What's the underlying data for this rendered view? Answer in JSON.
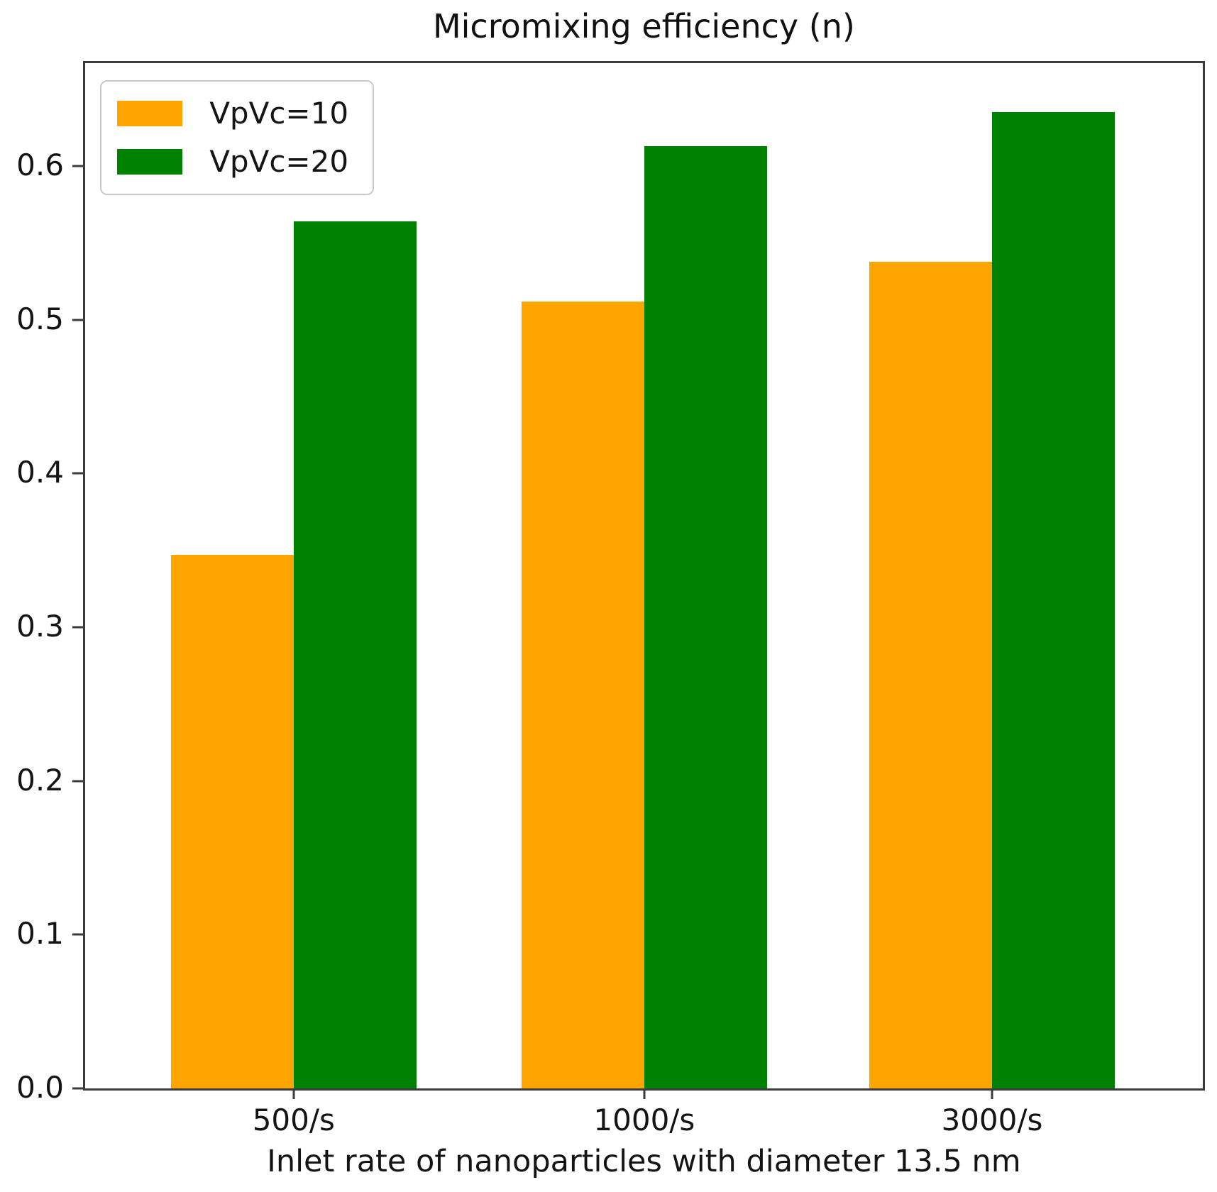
{
  "chart_data": {
    "type": "bar",
    "title": "Micromixing efficiency (n)",
    "xlabel": "Inlet rate of nanoparticles with diameter 13.5 nm",
    "ylabel": "",
    "categories": [
      "500/s",
      "1000/s",
      "3000/s"
    ],
    "series": [
      {
        "name": "VpVc=10",
        "color": "#FFA500",
        "values": [
          0.347,
          0.512,
          0.538
        ]
      },
      {
        "name": "VpVc=20",
        "color": "#008000",
        "values": [
          0.564,
          0.613,
          0.635
        ]
      }
    ],
    "yticks": [
      "0.0",
      "0.1",
      "0.2",
      "0.3",
      "0.4",
      "0.5",
      "0.6"
    ],
    "ylim": [
      0,
      0.667
    ],
    "legend_position": "upper left",
    "grid": false,
    "axis_color": "#3b3b3b",
    "text_color": "#141414"
  }
}
